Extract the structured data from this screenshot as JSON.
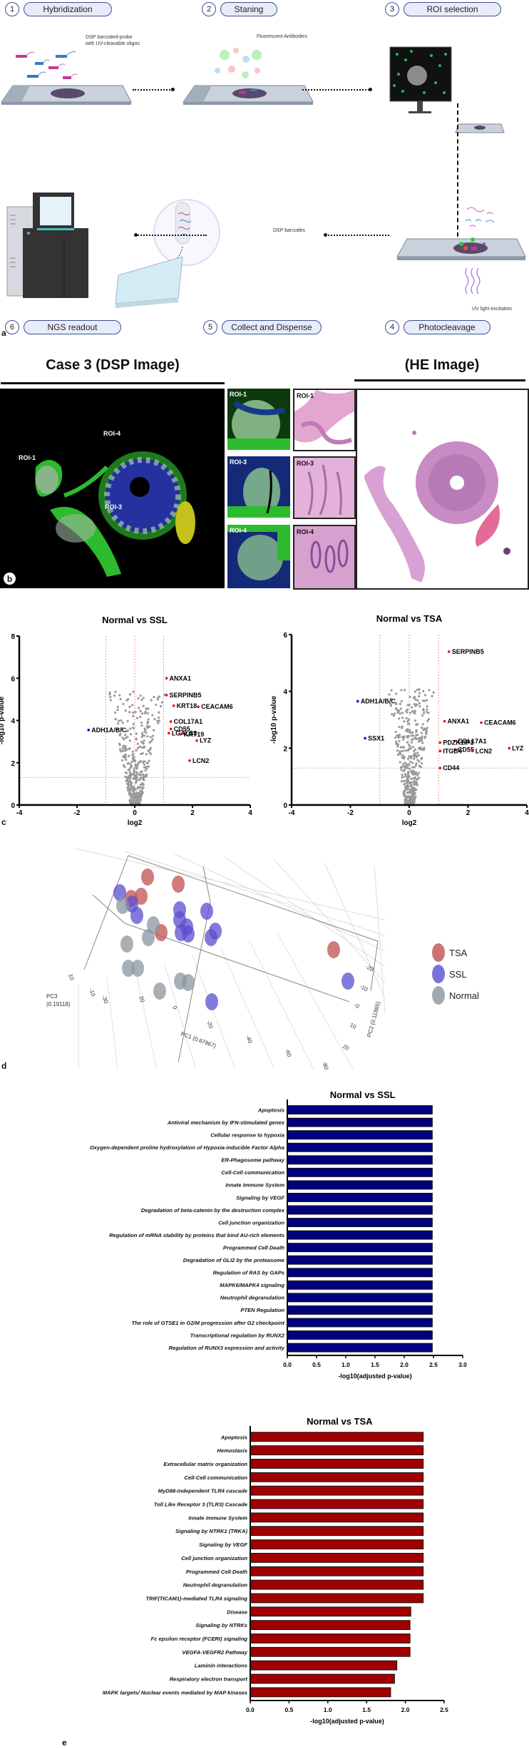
{
  "panel_a": {
    "letter": "a",
    "steps": [
      {
        "num": "1",
        "label": "Hybridization"
      },
      {
        "num": "2",
        "label": "Staning"
      },
      {
        "num": "3",
        "label": "ROI selection"
      },
      {
        "num": "4",
        "label": "Photocleavage"
      },
      {
        "num": "5",
        "label": "Collect and Dispense"
      },
      {
        "num": "6",
        "label": "NGS readout"
      }
    ],
    "notes": {
      "probe": "DSP barcoded-probe\nwith UV-cleavable oligos",
      "antibodies": "Fluorescent Antibodies",
      "barcodes": "DSP barcodes",
      "uv": "UV light excitation"
    }
  },
  "panel_b": {
    "letter": "b",
    "dsp_title": "Case 3 (DSP Image)",
    "he_title": "(HE Image)",
    "roi_labels": [
      "ROI-1",
      "ROI-3",
      "ROI-4"
    ]
  },
  "panel_c": {
    "letter": "c"
  },
  "panel_d": {
    "letter": "d"
  },
  "panel_e": {
    "letter": "e"
  },
  "chart_data": [
    {
      "id": "volcano_ssl",
      "type": "scatter",
      "title": "Normal vs SSL",
      "xlabel": "log2",
      "ylabel": "-log10 p-value",
      "xlim": [
        -4,
        4
      ],
      "ylim": [
        0,
        8
      ],
      "xticks": [
        -4,
        -2,
        0,
        2,
        4
      ],
      "yticks": [
        0,
        2,
        4,
        6,
        8
      ],
      "vlines": [
        -1,
        0,
        1
      ],
      "hline": 1.3,
      "labeled_points": [
        {
          "gene": "ANXA1",
          "x": 1.1,
          "y": 6.0,
          "dir": "up"
        },
        {
          "gene": "SERPINB5",
          "x": 1.1,
          "y": 5.2,
          "dir": "up"
        },
        {
          "gene": "KRT18",
          "x": 1.35,
          "y": 4.7,
          "dir": "up"
        },
        {
          "gene": "CEACAM6",
          "x": 2.2,
          "y": 4.65,
          "dir": "up"
        },
        {
          "gene": "COL17A1",
          "x": 1.25,
          "y": 3.95,
          "dir": "up"
        },
        {
          "gene": "CD55",
          "x": 1.25,
          "y": 3.6,
          "dir": "up"
        },
        {
          "gene": "LGALS3",
          "x": 1.18,
          "y": 3.4,
          "dir": "up"
        },
        {
          "gene": "KRT19",
          "x": 1.6,
          "y": 3.35,
          "dir": "up"
        },
        {
          "gene": "LYZ",
          "x": 2.15,
          "y": 3.05,
          "dir": "up"
        },
        {
          "gene": "LCN2",
          "x": 1.9,
          "y": 2.1,
          "dir": "up"
        },
        {
          "gene": "ADH1A/B/C",
          "x": -1.6,
          "y": 3.55,
          "dir": "down"
        }
      ]
    },
    {
      "id": "volcano_tsa",
      "type": "scatter",
      "title": "Normal vs TSA",
      "xlabel": "log2",
      "ylabel": "-log10 p-value",
      "xlim": [
        -4,
        4
      ],
      "ylim": [
        0,
        6
      ],
      "xticks": [
        -4,
        -2,
        0,
        2,
        4
      ],
      "yticks": [
        0,
        2,
        4,
        6
      ],
      "vlines": [
        -1,
        0,
        1
      ],
      "hline": 1.3,
      "labeled_points": [
        {
          "gene": "SERPINB5",
          "x": 1.35,
          "y": 5.4,
          "dir": "up"
        },
        {
          "gene": "ANXA1",
          "x": 1.2,
          "y": 2.95,
          "dir": "up"
        },
        {
          "gene": "CEACAM6",
          "x": 2.45,
          "y": 2.9,
          "dir": "up"
        },
        {
          "gene": "COL17A1",
          "x": 1.55,
          "y": 2.25,
          "dir": "up"
        },
        {
          "gene": "PDZK1IP1",
          "x": 1.05,
          "y": 2.2,
          "dir": "up"
        },
        {
          "gene": "CD55",
          "x": 1.55,
          "y": 1.95,
          "dir": "up"
        },
        {
          "gene": "LYZ",
          "x": 3.4,
          "y": 2.0,
          "dir": "up"
        },
        {
          "gene": "ITGB4",
          "x": 1.05,
          "y": 1.9,
          "dir": "up"
        },
        {
          "gene": "LCN2",
          "x": 2.15,
          "y": 1.9,
          "dir": "up"
        },
        {
          "gene": "CD44",
          "x": 1.05,
          "y": 1.3,
          "dir": "up"
        },
        {
          "gene": "ADH1A/B/C",
          "x": -1.75,
          "y": 3.65,
          "dir": "down"
        },
        {
          "gene": "SSX1",
          "x": -1.5,
          "y": 2.35,
          "dir": "down"
        }
      ]
    },
    {
      "id": "pca_3d",
      "type": "scatter",
      "title": "",
      "axes": {
        "pc1": "PC1 (0.67867)",
        "pc2": "PC2 (0.11885)",
        "pc3": "PC3\n(0.19118)"
      },
      "pc1_ticks": [
        "20",
        "0",
        "-20",
        "-40",
        "-60",
        "-80"
      ],
      "pc2_ticks": [
        "-20",
        "-10",
        "-0",
        "10",
        "20"
      ],
      "pc3_ticks": [
        "10",
        "-10",
        "-30"
      ],
      "legend": [
        {
          "name": "TSA",
          "color": "#c0504d"
        },
        {
          "name": "SSL",
          "color": "#5a4fcf"
        },
        {
          "name": "Normal",
          "color": "#8a95a0"
        }
      ],
      "legend_position": "right",
      "groups": {
        "TSA": 7,
        "SSL": 17,
        "Normal": 11
      }
    },
    {
      "id": "bar_ssl",
      "type": "bar",
      "orientation": "horizontal",
      "title": "Normal vs SSL",
      "xlabel": "-log10(adjusted p-value)",
      "xlim": [
        0,
        3.0
      ],
      "xticks": [
        "0.0",
        "0.5",
        "1.0",
        "1.5",
        "2.0",
        "2.5",
        "3.0"
      ],
      "color": "#000080",
      "categories": [
        "Apoptosis",
        "Antiviral mechanism by IFN-stimulated genes",
        "Cellular response to hypoxia",
        "Oxygen-dependent proline hydroxylation of Hypoxia-inducible Factor Alpha",
        "ER-Phagosome pathway",
        "Cell-Cell communication",
        "Innate Immune System",
        "Signaling by VEGF",
        "Degradation of beta-catenin by the destruction complex",
        "Cell junction organization",
        "Regulation of mRNA stability by proteins that bind AU-rich elements",
        "Programmed Cell Death",
        "Degradation of GLI2 by the proteasome",
        "Regulation of RAS by GAPs",
        "MAPK6/MAPK4 signaling",
        "Neutrophil degranulation",
        "PTEN Regulation",
        "The role of GTSE1 in G2/M progression after G2 checkpoint",
        "Transcriptional regulation by RUNX2",
        "Regulation of RUNX3 expression and activity"
      ],
      "values": [
        2.48,
        2.48,
        2.48,
        2.48,
        2.48,
        2.48,
        2.48,
        2.48,
        2.48,
        2.48,
        2.48,
        2.48,
        2.48,
        2.48,
        2.48,
        2.48,
        2.48,
        2.48,
        2.48,
        2.48
      ]
    },
    {
      "id": "bar_tsa",
      "type": "bar",
      "orientation": "horizontal",
      "title": "Normal vs TSA",
      "xlabel": "-log10(adjusted p-value)",
      "xlim": [
        0,
        2.5
      ],
      "xticks": [
        "0.0",
        "0.5",
        "1.0",
        "1.5",
        "2.0",
        "2.5"
      ],
      "color": "#a00000",
      "categories": [
        "Apoptosis",
        "Hemostasis",
        "Extracellular matrix organization",
        "Cell-Cell communication",
        "MyD88-independent TLR4 cascade",
        "Toll Like Receptor 3 (TLR3) Cascade",
        "Innate Immune System",
        "Signaling by NTRK1 (TRKA)",
        "Signaling by VEGF",
        "Cell junction organization",
        "Programmed Cell Death",
        "Neutrophil degranulation",
        "TRIF(TICAM1)-mediated TLR4 signaling",
        "Disease",
        "Signaling by NTRKs",
        "Fc epsilon receptor (FCERI) signaling",
        "VEGFA-VEGFR2 Pathway",
        "Laminin interactions",
        "Respiratory electron transport",
        "MAPK targets/ Nuclear events mediated by MAP kinases"
      ],
      "values": [
        2.23,
        2.23,
        2.23,
        2.23,
        2.23,
        2.23,
        2.23,
        2.23,
        2.23,
        2.23,
        2.23,
        2.23,
        2.23,
        2.07,
        2.06,
        2.06,
        2.06,
        1.89,
        1.86,
        1.81
      ]
    }
  ]
}
